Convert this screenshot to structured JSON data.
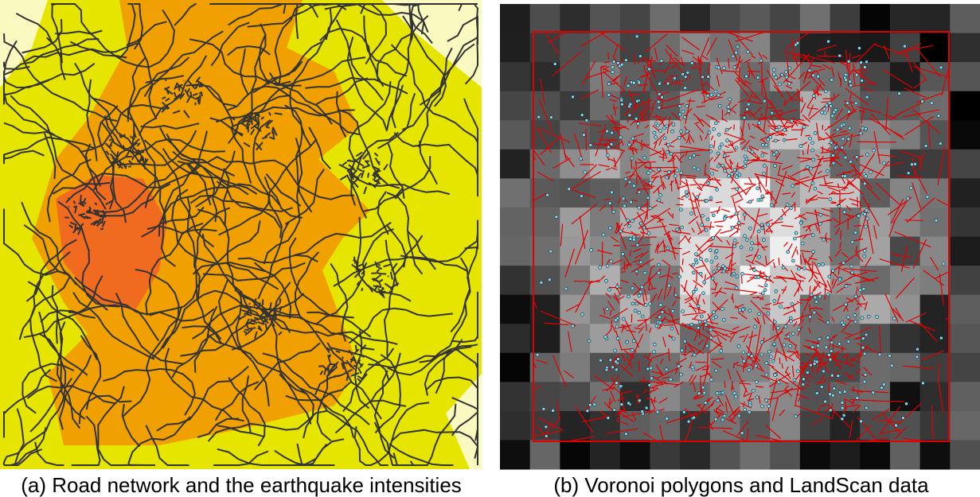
{
  "panels": [
    {
      "caption": "(a) Road network and the earthquake intensities"
    },
    {
      "caption": "(b) Voronoi polygons and LandScan data"
    }
  ]
}
